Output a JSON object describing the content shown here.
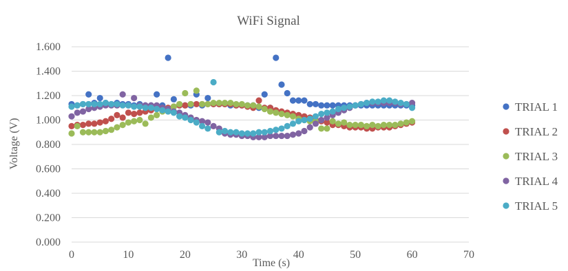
{
  "chart_data": {
    "type": "scatter",
    "title": "WiFi Signal",
    "xlabel": "Time (s)",
    "ylabel": "Voltage  (V)",
    "xlim": [
      0,
      70
    ],
    "ylim": [
      0,
      1.6
    ],
    "x_ticks": [
      "0",
      "10",
      "20",
      "30",
      "40",
      "50",
      "60",
      "70"
    ],
    "y_ticks": [
      "0.000",
      "0.200",
      "0.400",
      "0.600",
      "0.800",
      "1.000",
      "1.200",
      "1.400",
      "1.600"
    ],
    "grid": "horizontal",
    "legend_position": "right",
    "x": [
      0,
      1,
      2,
      3,
      4,
      5,
      6,
      7,
      8,
      9,
      10,
      11,
      12,
      13,
      14,
      15,
      16,
      17,
      18,
      19,
      20,
      21,
      22,
      23,
      24,
      25,
      26,
      27,
      28,
      29,
      30,
      31,
      32,
      33,
      34,
      35,
      36,
      37,
      38,
      39,
      40,
      41,
      42,
      43,
      44,
      45,
      46,
      47,
      48,
      49,
      50,
      51,
      52,
      53,
      54,
      55,
      56,
      57,
      58,
      59,
      60
    ],
    "series": [
      {
        "name": "TRIAL 1",
        "color": "#4472c4",
        "values": [
          1.13,
          1.12,
          1.13,
          1.21,
          1.14,
          1.18,
          1.14,
          1.13,
          1.14,
          1.13,
          1.13,
          1.12,
          1.13,
          1.12,
          1.12,
          1.21,
          1.12,
          1.51,
          1.17,
          1.12,
          1.12,
          1.12,
          1.21,
          1.12,
          1.18,
          1.13,
          1.13,
          1.13,
          1.12,
          1.12,
          1.12,
          1.12,
          1.12,
          1.1,
          1.21,
          1.1,
          1.51,
          1.29,
          1.22,
          1.16,
          1.16,
          1.16,
          1.13,
          1.13,
          1.12,
          1.12,
          1.12,
          1.12,
          1.12,
          1.12,
          1.12,
          1.12,
          1.12,
          1.12,
          1.12,
          1.12,
          1.12,
          1.12,
          1.12,
          1.12,
          1.12
        ]
      },
      {
        "name": "TRIAL 2",
        "color": "#c0504d",
        "values": [
          0.95,
          0.96,
          0.96,
          0.97,
          0.97,
          0.98,
          0.99,
          1.01,
          1.04,
          1.02,
          1.06,
          1.05,
          1.06,
          1.07,
          1.08,
          1.09,
          1.1,
          1.1,
          1.11,
          1.12,
          1.12,
          1.13,
          1.13,
          1.13,
          1.13,
          1.13,
          1.13,
          1.13,
          1.13,
          1.12,
          1.12,
          1.11,
          1.1,
          1.16,
          1.1,
          1.1,
          1.08,
          1.07,
          1.06,
          1.05,
          1.04,
          1.03,
          1.02,
          1.0,
          0.99,
          0.98,
          0.96,
          0.96,
          0.95,
          0.94,
          0.94,
          0.94,
          0.93,
          0.93,
          0.94,
          0.94,
          0.94,
          0.95,
          0.96,
          0.97,
          0.98
        ]
      },
      {
        "name": "TRIAL 3",
        "color": "#9bbb59",
        "values": [
          0.89,
          0.95,
          0.9,
          0.9,
          0.9,
          0.9,
          0.91,
          0.92,
          0.94,
          0.96,
          0.98,
          0.99,
          1.0,
          0.97,
          1.02,
          1.04,
          1.07,
          1.09,
          1.11,
          1.13,
          1.22,
          1.13,
          1.24,
          1.13,
          1.13,
          1.14,
          1.14,
          1.14,
          1.14,
          1.13,
          1.13,
          1.12,
          1.12,
          1.11,
          1.09,
          1.07,
          1.06,
          1.05,
          1.04,
          1.03,
          1.01,
          1.0,
          0.99,
          0.99,
          0.93,
          0.93,
          0.99,
          0.97,
          0.98,
          0.96,
          0.96,
          0.96,
          0.95,
          0.96,
          0.95,
          0.96,
          0.96,
          0.96,
          0.97,
          0.98,
          0.99
        ]
      },
      {
        "name": "TRIAL 4",
        "color": "#8064a2",
        "values": [
          1.03,
          1.06,
          1.07,
          1.09,
          1.1,
          1.11,
          1.12,
          1.12,
          1.12,
          1.21,
          1.12,
          1.18,
          1.12,
          1.12,
          1.12,
          1.12,
          1.1,
          1.09,
          1.07,
          1.06,
          1.04,
          1.02,
          1.0,
          0.99,
          0.98,
          0.95,
          0.93,
          0.89,
          0.88,
          0.88,
          0.87,
          0.87,
          0.86,
          0.86,
          0.86,
          0.87,
          0.87,
          0.87,
          0.87,
          0.88,
          0.89,
          0.91,
          0.94,
          0.97,
          1.0,
          1.02,
          1.04,
          1.06,
          1.08,
          1.1,
          1.12,
          1.13,
          1.14,
          1.14,
          1.14,
          1.14,
          1.14,
          1.14,
          1.13,
          1.13,
          1.14
        ]
      },
      {
        "name": "TRIAL 5",
        "color": "#4bacc6",
        "values": [
          1.11,
          1.12,
          1.13,
          1.13,
          1.13,
          1.13,
          1.14,
          1.13,
          1.13,
          1.12,
          1.12,
          1.11,
          1.11,
          1.1,
          1.1,
          1.09,
          1.08,
          1.07,
          1.06,
          1.03,
          1.02,
          1.0,
          0.98,
          0.95,
          0.93,
          1.31,
          0.9,
          0.91,
          0.9,
          0.9,
          0.89,
          0.89,
          0.89,
          0.9,
          0.9,
          0.91,
          0.92,
          0.93,
          0.95,
          0.97,
          0.99,
          1.0,
          1.01,
          1.03,
          1.05,
          1.06,
          1.07,
          1.09,
          1.1,
          1.11,
          1.12,
          1.13,
          1.14,
          1.15,
          1.15,
          1.16,
          1.16,
          1.15,
          1.14,
          1.13,
          1.1
        ]
      }
    ]
  }
}
